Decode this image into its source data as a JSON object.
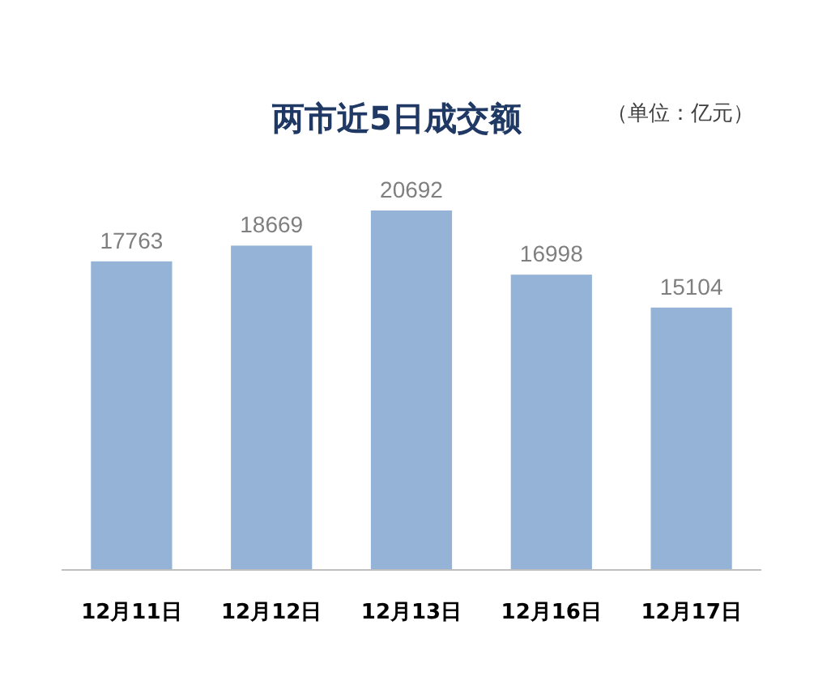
{
  "chart_data": {
    "type": "bar",
    "title": "两市近5日成交额",
    "annotations": [
      "（单位：亿元）"
    ],
    "categories": [
      "12月11日",
      "12月12日",
      "12月13日",
      "12月16日",
      "12月17日"
    ],
    "values": [
      17763,
      18669,
      20692,
      16998,
      15104
    ],
    "color": "#95b3d7",
    "tick_labels": "x",
    "data_labels": true
  }
}
